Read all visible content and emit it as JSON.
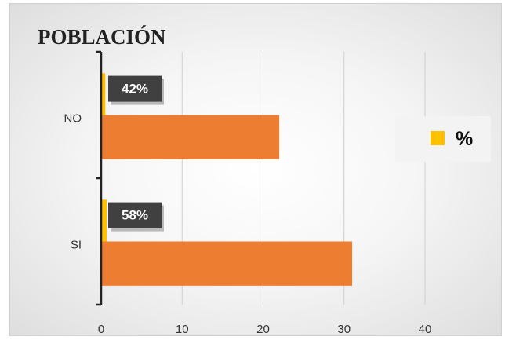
{
  "chart_data": {
    "type": "bar",
    "orientation": "horizontal",
    "title": "POBLACIÓN",
    "categories": [
      "NO",
      "SI"
    ],
    "series": [
      {
        "name": "%",
        "values": [
          0.42,
          0.58
        ],
        "labels": [
          "42%",
          "58%"
        ],
        "color": "#FFC000"
      },
      {
        "values": [
          22,
          31
        ],
        "color": "#ED7D31"
      }
    ],
    "xlim": [
      0,
      40
    ],
    "xticks": [
      "0",
      "10",
      "20",
      "30",
      "40"
    ],
    "grid": true,
    "legend": {
      "position": "right",
      "entries": [
        "%"
      ]
    }
  }
}
